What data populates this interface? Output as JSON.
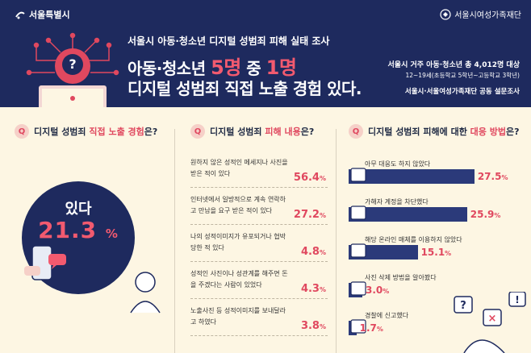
{
  "header": {
    "org_left": "서울특별시",
    "org_right": "서울시여성가족재단",
    "subtitle": "서울시 아동·청소년 디지털 성범죄 피해 실태 조사",
    "headline_part1": "아동·청소년 ",
    "headline_num1": "5명",
    "headline_part2": " 중 ",
    "headline_num2": "1명",
    "headline_line2": "디지털 성범죄 직접 노출 경험 있다.",
    "survey_line1": "서울시 거주 아동·청소년 총 4,012명 대상",
    "survey_line2": "12~19세(초등학교 5학년~고등학교 3학년)",
    "survey_line3": "서울시·서울여성가족재단 공동 설문조사"
  },
  "columns": {
    "left": {
      "q": "Q",
      "pre": "디지털 성범죄 ",
      "hl": "직접 노출 경험",
      "post": "은?"
    },
    "middle": {
      "q": "Q",
      "pre": "디지털 성범죄 ",
      "hl": "피해 내용",
      "post": "은?"
    },
    "right": {
      "q": "Q",
      "pre": "디지털 성범죄 피해에 대한 ",
      "hl": "대응 방법",
      "post": "은?"
    }
  },
  "exposure": {
    "label": "있다",
    "value": "21.3",
    "unit": "%"
  },
  "harm_items": [
    {
      "text": "원하지 않은 성적인 메세지나 사진을 받은 적이 있다",
      "value": "56.4",
      "unit": "%"
    },
    {
      "text": "인터넷에서 일방적으로 계속 연락하고 만남을 요구 받은 적이 있다",
      "value": "27.2",
      "unit": "%"
    },
    {
      "text": "나의 성적이미지가 유포되거나 협박당한 적 있다",
      "value": "4.8",
      "unit": "%"
    },
    {
      "text": "성적인 사진이나 성관계를 해주면 돈을 주겠다는 사람이 있었다",
      "value": "4.3",
      "unit": "%"
    },
    {
      "text": "노출사진 등 성적이미지를 보내달라고 하였다",
      "value": "3.8",
      "unit": "%"
    }
  ],
  "responses": [
    {
      "label": "아무 대응도 하지 않았다",
      "value": 27.5,
      "unit": "%",
      "icon": "crying-face-icon"
    },
    {
      "label": "가해자 계정을 차단했다",
      "value": 25.9,
      "unit": "%",
      "icon": "stop-hand-icon"
    },
    {
      "label": "해당 온라인 매체를 이용하지 않았다",
      "value": 15.1,
      "unit": "%",
      "icon": "blocked-screen-icon"
    },
    {
      "label": "사진 삭제 방법을 알아봤다",
      "value": 3.0,
      "unit": "%",
      "icon": "monitor-icon"
    },
    {
      "label": "경찰에 신고했다",
      "value": 1.7,
      "unit": "%",
      "icon": "police-icon"
    }
  ],
  "colors": {
    "navy": "#1e2a5e",
    "accent": "#e0485f",
    "bar": "#2b3a7a",
    "background": "#fdf6e3"
  }
}
